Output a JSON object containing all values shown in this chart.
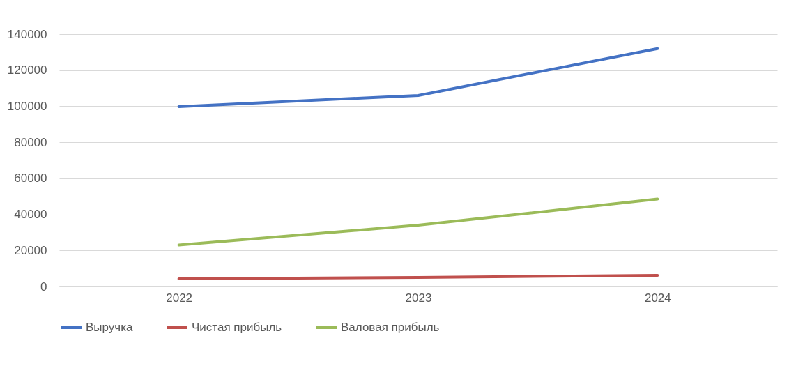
{
  "chart_data": {
    "type": "line",
    "categories": [
      "2022",
      "2023",
      "2024"
    ],
    "series": [
      {
        "name": "Выручка",
        "color": "#4472c4",
        "values": [
          99800,
          106000,
          132000
        ]
      },
      {
        "name": "Чистая прибыль",
        "color": "#c0504d",
        "values": [
          4300,
          5000,
          6200
        ]
      },
      {
        "name": "Валовая прибыль",
        "color": "#9bbb59",
        "values": [
          23000,
          34000,
          48500
        ]
      }
    ],
    "ylim": [
      0,
      140000
    ],
    "yticks": [
      0,
      20000,
      40000,
      60000,
      80000,
      100000,
      120000,
      140000
    ],
    "grid": "y",
    "legend": "bottom",
    "marker": "none",
    "line_style": "solid"
  }
}
